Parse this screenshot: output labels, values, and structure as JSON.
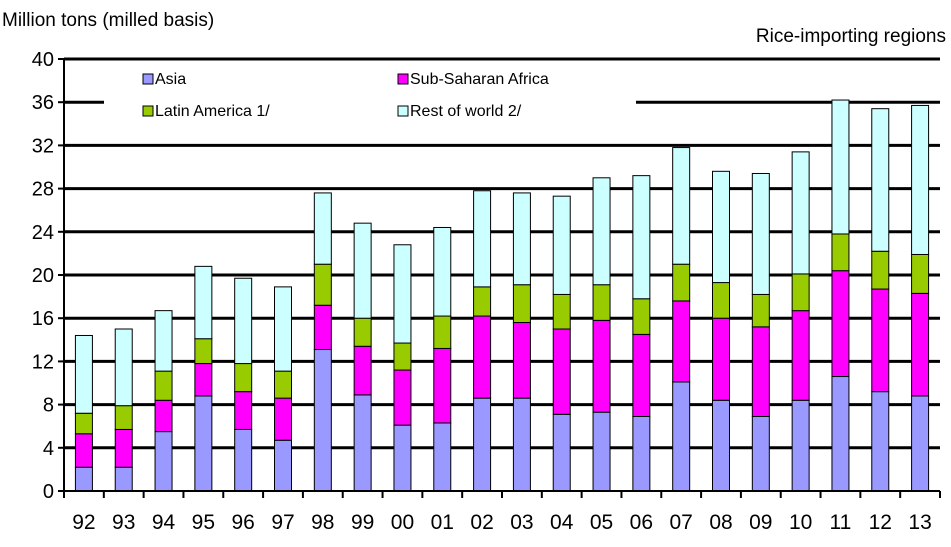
{
  "chart_data": {
    "type": "bar",
    "stacked": true,
    "ylabel": "Million tons (milled basis)",
    "title": "Rice-importing regions",
    "ylim": [
      0,
      40
    ],
    "yticks": [
      0,
      4,
      8,
      12,
      16,
      20,
      24,
      28,
      32,
      36,
      40
    ],
    "grid": true,
    "legend_position": "top-left",
    "categories": [
      "92",
      "93",
      "94",
      "95",
      "96",
      "97",
      "98",
      "99",
      "00",
      "01",
      "02",
      "03",
      "04",
      "05",
      "06",
      "07",
      "08",
      "09",
      "10",
      "11",
      "12",
      "13"
    ],
    "series": [
      {
        "name": "Asia",
        "color": "#9999ff",
        "values": [
          2.2,
          2.2,
          5.5,
          8.8,
          5.7,
          4.7,
          13.1,
          8.9,
          6.1,
          6.3,
          8.6,
          8.6,
          7.1,
          7.3,
          6.9,
          10.1,
          8.4,
          6.9,
          8.4,
          10.6,
          9.2,
          8.8
        ]
      },
      {
        "name": "Sub-Saharan  Africa",
        "color": "#ff00ff",
        "values": [
          3.1,
          3.5,
          2.9,
          3.0,
          3.5,
          3.9,
          4.1,
          4.5,
          5.1,
          6.9,
          7.6,
          7.0,
          7.9,
          8.5,
          7.6,
          7.5,
          7.6,
          8.3,
          8.3,
          9.8,
          9.5,
          9.5
        ]
      },
      {
        "name": "Latin America 1/",
        "color": "#99cc00",
        "values": [
          1.9,
          2.2,
          2.7,
          2.3,
          2.6,
          2.5,
          3.8,
          2.6,
          2.5,
          3.0,
          2.7,
          3.5,
          3.2,
          3.3,
          3.3,
          3.4,
          3.3,
          3.0,
          3.4,
          3.4,
          3.5,
          3.6
        ]
      },
      {
        "name": "Rest of world 2/",
        "color": "#ccffff",
        "values": [
          7.2,
          7.1,
          5.6,
          6.7,
          7.9,
          7.8,
          6.6,
          8.8,
          9.1,
          8.2,
          8.9,
          8.5,
          9.1,
          9.9,
          11.4,
          10.8,
          10.3,
          11.2,
          11.3,
          12.4,
          13.2,
          13.8
        ]
      }
    ]
  }
}
